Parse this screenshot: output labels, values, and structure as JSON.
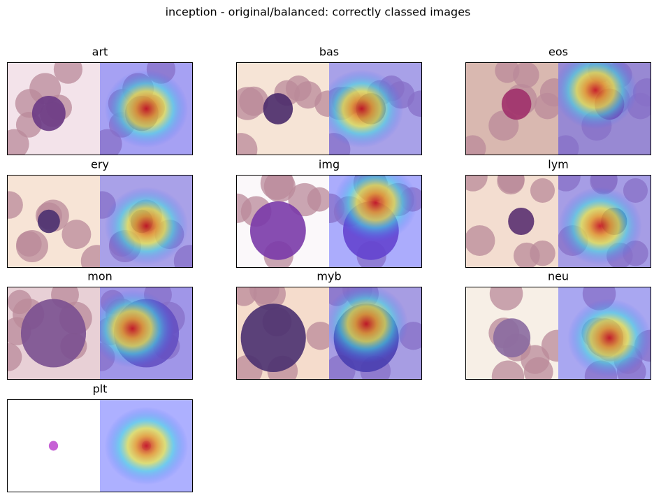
{
  "title": "inception - original/balanced: correctly classed images",
  "panels": [
    {
      "title": "art"
    },
    {
      "title": "bas"
    },
    {
      "title": "eos"
    },
    {
      "title": "ery"
    },
    {
      "title": "img"
    },
    {
      "title": "lym"
    },
    {
      "title": "mon"
    },
    {
      "title": "myb"
    },
    {
      "title": "neu"
    },
    {
      "title": "plt"
    }
  ]
}
